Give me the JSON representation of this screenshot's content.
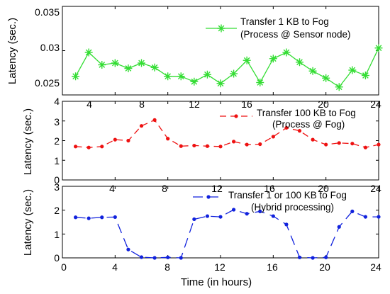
{
  "chart_data": [
    {
      "type": "line",
      "title": "",
      "xlabel": "",
      "ylabel": "Latency (sec.)",
      "xlim": [
        0,
        24
      ],
      "ylim": [
        0.025,
        0.035
      ],
      "xticks": [
        4,
        8,
        12,
        16,
        20,
        24
      ],
      "yticks": [
        0.025,
        0.03,
        0.035
      ],
      "ytick_labels": [
        "0.025",
        "0.03",
        "0.035"
      ],
      "legend_position": "top-right",
      "series": [
        {
          "name_lines": [
            "Transfer 1 KB to Fog",
            "(Process @ Sensor node)"
          ],
          "color": "#33dd33",
          "dash": "solid",
          "marker": "asterisk",
          "x": [
            1,
            2,
            3,
            4,
            5,
            6,
            7,
            8,
            9,
            10,
            11,
            12,
            13,
            14,
            15,
            16,
            17,
            18,
            19,
            20,
            21,
            22,
            23,
            24
          ],
          "y": [
            0.0271,
            0.0298,
            0.0284,
            0.0286,
            0.028,
            0.0286,
            0.0281,
            0.0271,
            0.0271,
            0.0265,
            0.0273,
            0.0263,
            0.0274,
            0.0289,
            0.0264,
            0.0291,
            0.0298,
            0.0287,
            0.0277,
            0.0269,
            0.0259,
            0.0278,
            0.0272,
            0.0303
          ]
        }
      ]
    },
    {
      "type": "line",
      "title": "",
      "xlabel": "",
      "ylabel": "Latency (sec.)",
      "xlim": [
        0,
        24
      ],
      "ylim": [
        0,
        4
      ],
      "xticks": [
        4,
        8,
        12,
        16,
        20,
        24
      ],
      "yticks": [
        0,
        1,
        2,
        3,
        4
      ],
      "ytick_labels": [
        "0",
        "1",
        "2",
        "3",
        "4"
      ],
      "legend_position": "top-right",
      "series": [
        {
          "name_lines": [
            "Transfer 100 KB to Fog",
            "(Process @ Fog)"
          ],
          "color": "#ee1111",
          "dash": "dashed",
          "marker": "dot",
          "x": [
            1,
            2,
            3,
            4,
            5,
            6,
            7,
            8,
            9,
            10,
            11,
            12,
            13,
            14,
            15,
            16,
            17,
            18,
            19,
            20,
            21,
            22,
            23,
            24
          ],
          "y": [
            1.7,
            1.65,
            1.7,
            2.05,
            2.0,
            2.75,
            3.05,
            2.1,
            1.72,
            1.75,
            1.72,
            1.7,
            1.95,
            1.8,
            1.82,
            2.2,
            2.65,
            2.5,
            2.05,
            1.8,
            1.88,
            1.85,
            1.65,
            1.8
          ]
        }
      ]
    },
    {
      "type": "line",
      "title": "",
      "xlabel": "Time (in hours)",
      "ylabel": "Latency (sec.)",
      "xlim": [
        0,
        24
      ],
      "ylim": [
        0,
        3
      ],
      "xticks": [
        0,
        4,
        8,
        12,
        16,
        20,
        24
      ],
      "yticks": [
        0,
        1,
        2,
        3
      ],
      "ytick_labels": [
        "0",
        "1",
        "2",
        "3"
      ],
      "legend_position": "top-right",
      "series": [
        {
          "name_lines": [
            "Transfer 1 or 100 KB to Fog",
            "(Hybrid processing)"
          ],
          "color": "#1122dd",
          "dash": "longdash",
          "marker": "dot",
          "x": [
            1,
            2,
            3,
            4,
            5,
            6,
            7,
            8,
            9,
            10,
            11,
            12,
            13,
            14,
            15,
            16,
            17,
            18,
            19,
            20,
            21,
            22,
            23,
            24
          ],
          "y": [
            1.7,
            1.66,
            1.7,
            1.71,
            0.35,
            0.03,
            0.0,
            0.02,
            0.0,
            1.62,
            1.75,
            1.72,
            2.02,
            1.85,
            1.95,
            1.75,
            1.4,
            0.02,
            0.0,
            0.02,
            1.3,
            1.95,
            1.72,
            1.72
          ]
        }
      ]
    }
  ]
}
